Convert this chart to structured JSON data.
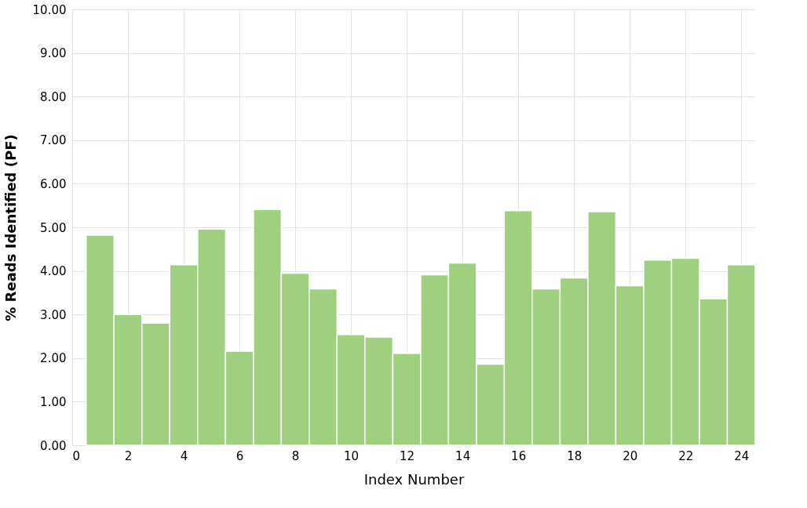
{
  "chart_data": {
    "type": "histogram",
    "xlabel": "Index Number",
    "ylabel": "% Reads Identified (PF)",
    "color": "#9fd07f",
    "bins": [
      0.5,
      1.5,
      2.5,
      3.5,
      4.5,
      5.5,
      6.5,
      7.5,
      8.5,
      9.5,
      10.5,
      11.5,
      12.5,
      13.5,
      14.5,
      15.5,
      16.5,
      17.5,
      18.5,
      19.5,
      20.5,
      21.5,
      22.5,
      23.5,
      24.5
    ],
    "values": [
      4.82,
      3.0,
      2.8,
      4.14,
      4.96,
      2.16,
      5.41,
      3.95,
      3.59,
      2.54,
      2.48,
      2.11,
      3.91,
      4.18,
      1.86,
      5.38,
      3.59,
      3.84,
      5.36,
      3.66,
      4.25,
      4.29,
      3.36,
      4.14
    ],
    "xlim": [
      0,
      24.5
    ],
    "xticks": [
      0,
      2,
      4,
      6,
      8,
      10,
      12,
      14,
      16,
      18,
      20,
      22,
      24
    ],
    "ylim": [
      0,
      10
    ],
    "yticks": [
      {
        "value": 0,
        "label": "0.00"
      },
      {
        "value": 1,
        "label": "1.00"
      },
      {
        "value": 2,
        "label": "2.00"
      },
      {
        "value": 3,
        "label": "3.00"
      },
      {
        "value": 4,
        "label": "4.00"
      },
      {
        "value": 5,
        "label": "5.00"
      },
      {
        "value": 6,
        "label": "6.00"
      },
      {
        "value": 7,
        "label": "7.00"
      },
      {
        "value": 8,
        "label": "8.00"
      },
      {
        "value": 9,
        "label": "9.00"
      },
      {
        "value": 10,
        "label": "10.00"
      }
    ],
    "grid": true
  }
}
